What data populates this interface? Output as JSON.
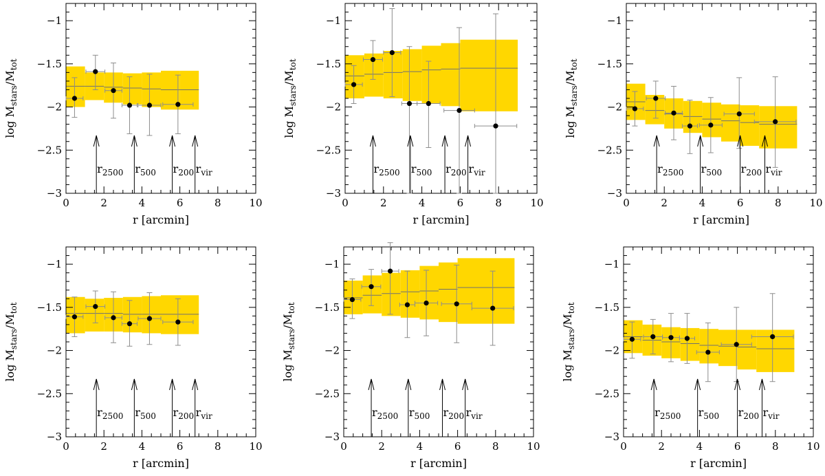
{
  "chart_data": [
    {
      "type": "scatter",
      "xlabel": "r [arcmin]",
      "ylabel_main": "log M",
      "ylabel_sub_num": "stars",
      "ylabel_sub_den": "tot",
      "xlim": [
        0,
        10
      ],
      "ylim": [
        -3,
        -0.8
      ],
      "xticks": [
        0,
        2,
        4,
        6,
        8,
        10
      ],
      "xtick_labels": [
        "0",
        "2",
        "4",
        "6",
        "8",
        "10"
      ],
      "yticks": [
        -3,
        -2.5,
        -2,
        -1.5,
        -1
      ],
      "ytick_labels": [
        "−3",
        "−2.5",
        "−2",
        "−1.5",
        "−1"
      ],
      "band": [
        {
          "x0": 0,
          "x1": 1,
          "lo": -2.0,
          "hi": -1.53
        },
        {
          "x0": 1,
          "x1": 2,
          "lo": -1.92,
          "hi": -1.6
        },
        {
          "x0": 2,
          "x1": 3,
          "lo": -1.95,
          "hi": -1.6
        },
        {
          "x0": 3,
          "x1": 4,
          "lo": -1.97,
          "hi": -1.61
        },
        {
          "x0": 4,
          "x1": 5,
          "lo": -2.0,
          "hi": -1.6
        },
        {
          "x0": 5,
          "x1": 6,
          "lo": -2.03,
          "hi": -1.58
        },
        {
          "x0": 6,
          "x1": 7,
          "lo": -2.03,
          "hi": -1.58
        }
      ],
      "line": [
        -1.76,
        -1.76,
        -1.77,
        -1.78,
        -1.79,
        -1.8,
        -1.8
      ],
      "points": [
        {
          "x": 0.45,
          "y": -1.9,
          "xerr": 0.45,
          "ylo": -2.12,
          "yhi": -1.66
        },
        {
          "x": 1.55,
          "y": -1.59,
          "xerr": 0.5,
          "ylo": -1.8,
          "yhi": -1.4
        },
        {
          "x": 2.5,
          "y": -1.81,
          "xerr": 0.45,
          "ylo": -2.13,
          "yhi": -1.49
        },
        {
          "x": 3.35,
          "y": -1.98,
          "xerr": 0.4,
          "ylo": -2.31,
          "yhi": -1.65
        },
        {
          "x": 4.4,
          "y": -1.98,
          "xerr": 0.6,
          "ylo": -2.33,
          "yhi": -1.62
        },
        {
          "x": 5.9,
          "y": -1.97,
          "xerr": 0.8,
          "ylo": -2.31,
          "yhi": -1.63
        }
      ],
      "arrows": [
        {
          "x": 1.6,
          "label": "r",
          "sub": "2500"
        },
        {
          "x": 3.6,
          "label": "r",
          "sub": "500"
        },
        {
          "x": 5.6,
          "label": "r",
          "sub": "200"
        },
        {
          "x": 6.8,
          "label": "r",
          "sub": "vir"
        }
      ]
    },
    {
      "type": "scatter",
      "xlabel": "r [arcmin]",
      "ylabel_main": "log M",
      "ylabel_sub_num": "stars",
      "ylabel_sub_den": "tot",
      "xlim": [
        0,
        10
      ],
      "ylim": [
        -3,
        -0.8
      ],
      "xticks": [
        0,
        2,
        4,
        6,
        8,
        10
      ],
      "xtick_labels": [
        "0",
        "2",
        "4",
        "6",
        "8",
        "10"
      ],
      "yticks": [
        -3,
        -2.5,
        -2,
        -1.5,
        -1
      ],
      "ytick_labels": [
        "−3",
        "−2.5",
        "−2",
        "−1.5",
        "−1"
      ],
      "band": [
        {
          "x0": 0,
          "x1": 1,
          "lo": -1.9,
          "hi": -1.4
        },
        {
          "x0": 1,
          "x1": 2,
          "lo": -1.88,
          "hi": -1.38
        },
        {
          "x0": 2,
          "x1": 3,
          "lo": -1.9,
          "hi": -1.35
        },
        {
          "x0": 3,
          "x1": 4,
          "lo": -1.93,
          "hi": -1.33
        },
        {
          "x0": 4,
          "x1": 5,
          "lo": -1.96,
          "hi": -1.29
        },
        {
          "x0": 5,
          "x1": 6,
          "lo": -1.99,
          "hi": -1.26
        },
        {
          "x0": 6,
          "x1": 9,
          "lo": -2.05,
          "hi": -1.22
        }
      ],
      "line": [
        -1.64,
        -1.62,
        -1.6,
        -1.59,
        -1.57,
        -1.56,
        -1.55
      ],
      "points": [
        {
          "x": 0.45,
          "y": -1.74,
          "xerr": 0.45,
          "ylo": -1.96,
          "yhi": -1.52
        },
        {
          "x": 1.45,
          "y": -1.45,
          "xerr": 0.5,
          "ylo": -1.68,
          "yhi": -1.23
        },
        {
          "x": 2.45,
          "y": -1.37,
          "xerr": 0.45,
          "ylo": -1.88,
          "yhi": -0.86
        },
        {
          "x": 3.35,
          "y": -1.96,
          "xerr": 0.4,
          "ylo": -3.0,
          "yhi": -1.3
        },
        {
          "x": 4.35,
          "y": -1.96,
          "xerr": 0.6,
          "ylo": -2.47,
          "yhi": -1.47
        },
        {
          "x": 5.95,
          "y": -2.04,
          "xerr": 0.8,
          "ylo": -3.0,
          "yhi": -1.08
        },
        {
          "x": 7.85,
          "y": -2.22,
          "xerr": 1.1,
          "ylo": -3.0,
          "yhi": -0.92
        }
      ],
      "arrows": [
        {
          "x": 1.45,
          "label": "r",
          "sub": "2500"
        },
        {
          "x": 3.4,
          "label": "r",
          "sub": "500"
        },
        {
          "x": 5.2,
          "label": "r",
          "sub": "200"
        },
        {
          "x": 6.4,
          "label": "r",
          "sub": "vir"
        }
      ]
    },
    {
      "type": "scatter",
      "xlabel": "r [arcmin]",
      "ylabel_main": "log M",
      "ylabel_sub_num": "stars",
      "ylabel_sub_den": "tot",
      "xlim": [
        0,
        10
      ],
      "ylim": [
        -3,
        -0.8
      ],
      "xticks": [
        0,
        2,
        4,
        6,
        8,
        10
      ],
      "xtick_labels": [
        "0",
        "2",
        "4",
        "6",
        "8",
        "10"
      ],
      "yticks": [
        -3,
        -2.5,
        -2,
        -1.5,
        -1
      ],
      "ytick_labels": [
        "−3",
        "−2.5",
        "−2",
        "−1.5",
        "−1"
      ],
      "band": [
        {
          "x0": 0,
          "x1": 1,
          "lo": -2.15,
          "hi": -1.73
        },
        {
          "x0": 1,
          "x1": 2,
          "lo": -2.2,
          "hi": -1.86
        },
        {
          "x0": 2,
          "x1": 3,
          "lo": -2.25,
          "hi": -1.9
        },
        {
          "x0": 3,
          "x1": 4,
          "lo": -2.3,
          "hi": -1.93
        },
        {
          "x0": 4,
          "x1": 5,
          "lo": -2.35,
          "hi": -1.95
        },
        {
          "x0": 5,
          "x1": 6,
          "lo": -2.4,
          "hi": -1.97
        },
        {
          "x0": 6,
          "x1": 7,
          "lo": -2.45,
          "hi": -1.98
        },
        {
          "x0": 7,
          "x1": 9,
          "lo": -2.48,
          "hi": -1.99
        }
      ],
      "line": [
        -1.94,
        -2.04,
        -2.08,
        -2.11,
        -2.14,
        -2.16,
        -2.18,
        -2.2
      ],
      "points": [
        {
          "x": 0.45,
          "y": -2.02,
          "xerr": 0.45,
          "ylo": -2.22,
          "yhi": -1.82
        },
        {
          "x": 1.55,
          "y": -1.9,
          "xerr": 0.5,
          "ylo": -2.13,
          "yhi": -1.7
        },
        {
          "x": 2.5,
          "y": -2.07,
          "xerr": 0.45,
          "ylo": -2.38,
          "yhi": -1.76
        },
        {
          "x": 3.35,
          "y": -2.22,
          "xerr": 0.4,
          "ylo": -2.54,
          "yhi": -1.92
        },
        {
          "x": 4.45,
          "y": -2.21,
          "xerr": 0.6,
          "ylo": -2.53,
          "yhi": -1.89
        },
        {
          "x": 5.95,
          "y": -2.08,
          "xerr": 0.8,
          "ylo": -2.48,
          "yhi": -1.66
        },
        {
          "x": 7.85,
          "y": -2.17,
          "xerr": 1.1,
          "ylo": -2.7,
          "yhi": -1.65
        }
      ],
      "arrows": [
        {
          "x": 1.6,
          "label": "r",
          "sub": "2500"
        },
        {
          "x": 3.9,
          "label": "r",
          "sub": "500"
        },
        {
          "x": 6.0,
          "label": "r",
          "sub": "200"
        },
        {
          "x": 7.3,
          "label": "r",
          "sub": "vir"
        }
      ]
    },
    {
      "type": "scatter",
      "xlabel": "r [arcmin]",
      "ylabel_main": "log M",
      "ylabel_sub_num": "stars",
      "ylabel_sub_den": "tot",
      "xlim": [
        0,
        10
      ],
      "ylim": [
        -3,
        -0.8
      ],
      "xticks": [
        0,
        2,
        4,
        6,
        8,
        10
      ],
      "xtick_labels": [
        "0",
        "2",
        "4",
        "6",
        "8",
        "10"
      ],
      "yticks": [
        -3,
        -2.5,
        -2,
        -1.5,
        -1
      ],
      "ytick_labels": [
        "−3",
        "−2.5",
        "−2",
        "−1.5",
        "−1"
      ],
      "band": [
        {
          "x0": 0,
          "x1": 1,
          "lo": -1.8,
          "hi": -1.38
        },
        {
          "x0": 1,
          "x1": 2,
          "lo": -1.78,
          "hi": -1.4
        },
        {
          "x0": 2,
          "x1": 3,
          "lo": -1.78,
          "hi": -1.39
        },
        {
          "x0": 3,
          "x1": 4,
          "lo": -1.79,
          "hi": -1.38
        },
        {
          "x0": 4,
          "x1": 5,
          "lo": -1.8,
          "hi": -1.37
        },
        {
          "x0": 5,
          "x1": 7,
          "lo": -1.81,
          "hi": -1.36
        }
      ],
      "line": [
        -1.57,
        -1.57,
        -1.57,
        -1.58,
        -1.58,
        -1.58
      ],
      "points": [
        {
          "x": 0.45,
          "y": -1.61,
          "xerr": 0.45,
          "ylo": -1.84,
          "yhi": -1.38
        },
        {
          "x": 1.55,
          "y": -1.49,
          "xerr": 0.5,
          "ylo": -1.68,
          "yhi": -1.31
        },
        {
          "x": 2.5,
          "y": -1.62,
          "xerr": 0.45,
          "ylo": -1.91,
          "yhi": -1.32
        },
        {
          "x": 3.35,
          "y": -1.69,
          "xerr": 0.4,
          "ylo": -1.95,
          "yhi": -1.42
        },
        {
          "x": 4.4,
          "y": -1.63,
          "xerr": 0.6,
          "ylo": -1.93,
          "yhi": -1.33
        },
        {
          "x": 5.9,
          "y": -1.67,
          "xerr": 0.8,
          "ylo": -1.94,
          "yhi": -1.4
        }
      ],
      "arrows": [
        {
          "x": 1.6,
          "label": "r",
          "sub": "2500"
        },
        {
          "x": 3.6,
          "label": "r",
          "sub": "500"
        },
        {
          "x": 5.6,
          "label": "r",
          "sub": "200"
        },
        {
          "x": 6.8,
          "label": "r",
          "sub": "vir"
        }
      ]
    },
    {
      "type": "scatter",
      "xlabel": "r [arcmin]",
      "ylabel_main": "log M",
      "ylabel_sub_num": "stars",
      "ylabel_sub_den": "tot",
      "xlim": [
        0,
        10
      ],
      "ylim": [
        -3,
        -0.8
      ],
      "xticks": [
        0,
        2,
        4,
        6,
        8,
        10
      ],
      "xtick_labels": [
        "0",
        "2",
        "4",
        "6",
        "8",
        "10"
      ],
      "yticks": [
        -3,
        -2.5,
        -2,
        -1.5,
        -1
      ],
      "ytick_labels": [
        "−3",
        "−2.5",
        "−2",
        "−1.5",
        "−1"
      ],
      "band": [
        {
          "x0": 0,
          "x1": 1,
          "lo": -1.58,
          "hi": -1.19
        },
        {
          "x0": 1,
          "x1": 2,
          "lo": -1.57,
          "hi": -1.13
        },
        {
          "x0": 2,
          "x1": 3,
          "lo": -1.6,
          "hi": -1.1
        },
        {
          "x0": 3,
          "x1": 4,
          "lo": -1.62,
          "hi": -1.07
        },
        {
          "x0": 4,
          "x1": 5,
          "lo": -1.64,
          "hi": -1.02
        },
        {
          "x0": 5,
          "x1": 6,
          "lo": -1.67,
          "hi": -0.98
        },
        {
          "x0": 6,
          "x1": 9,
          "lo": -1.69,
          "hi": -0.93
        }
      ],
      "line": [
        -1.39,
        -1.36,
        -1.34,
        -1.32,
        -1.31,
        -1.29,
        -1.27
      ],
      "points": [
        {
          "x": 0.45,
          "y": -1.41,
          "xerr": 0.45,
          "ylo": -1.63,
          "yhi": -1.17
        },
        {
          "x": 1.45,
          "y": -1.26,
          "xerr": 0.5,
          "ylo": -1.48,
          "yhi": -1.06
        },
        {
          "x": 2.45,
          "y": -1.08,
          "xerr": 0.45,
          "ylo": -1.58,
          "yhi": -0.75
        },
        {
          "x": 3.35,
          "y": -1.47,
          "xerr": 0.4,
          "ylo": -1.85,
          "yhi": -1.08
        },
        {
          "x": 4.35,
          "y": -1.45,
          "xerr": 0.6,
          "ylo": -1.83,
          "yhi": -1.07
        },
        {
          "x": 5.95,
          "y": -1.46,
          "xerr": 0.8,
          "ylo": -1.91,
          "yhi": -1.01
        },
        {
          "x": 7.85,
          "y": -1.51,
          "xerr": 1.1,
          "ylo": -1.94,
          "yhi": -1.08
        }
      ],
      "arrows": [
        {
          "x": 1.45,
          "label": "r",
          "sub": "2500"
        },
        {
          "x": 3.4,
          "label": "r",
          "sub": "500"
        },
        {
          "x": 5.2,
          "label": "r",
          "sub": "200"
        },
        {
          "x": 6.4,
          "label": "r",
          "sub": "vir"
        }
      ]
    },
    {
      "type": "scatter",
      "xlabel": "r [arcmin]",
      "ylabel_main": "log M",
      "ylabel_sub_num": "stars",
      "ylabel_sub_den": "tot",
      "xlim": [
        0,
        10
      ],
      "ylim": [
        -3,
        -0.8
      ],
      "xticks": [
        0,
        2,
        4,
        6,
        8,
        10
      ],
      "xtick_labels": [
        "0",
        "2",
        "4",
        "6",
        "8",
        "10"
      ],
      "yticks": [
        -3,
        -2.5,
        -2,
        -1.5,
        -1
      ],
      "ytick_labels": [
        "−3",
        "−2.5",
        "−2",
        "−1.5",
        "−1"
      ],
      "band": [
        {
          "x0": 0,
          "x1": 1,
          "lo": -2.03,
          "hi": -1.65
        },
        {
          "x0": 1,
          "x1": 2,
          "lo": -2.06,
          "hi": -1.7
        },
        {
          "x0": 2,
          "x1": 3,
          "lo": -2.09,
          "hi": -1.73
        },
        {
          "x0": 3,
          "x1": 4,
          "lo": -2.12,
          "hi": -1.74
        },
        {
          "x0": 4,
          "x1": 5,
          "lo": -2.15,
          "hi": -1.75
        },
        {
          "x0": 5,
          "x1": 6,
          "lo": -2.18,
          "hi": -1.76
        },
        {
          "x0": 6,
          "x1": 7,
          "lo": -2.22,
          "hi": -1.76
        },
        {
          "x0": 7,
          "x1": 9,
          "lo": -2.25,
          "hi": -1.76
        }
      ],
      "line": [
        -1.84,
        -1.88,
        -1.9,
        -1.92,
        -1.94,
        -1.95,
        -1.96,
        -1.98
      ],
      "points": [
        {
          "x": 0.45,
          "y": -1.87,
          "xerr": 0.45,
          "ylo": -2.09,
          "yhi": -1.67
        },
        {
          "x": 1.55,
          "y": -1.84,
          "xerr": 0.5,
          "ylo": -2.04,
          "yhi": -1.64
        },
        {
          "x": 2.5,
          "y": -1.85,
          "xerr": 0.45,
          "ylo": -2.13,
          "yhi": -1.57
        },
        {
          "x": 3.35,
          "y": -1.86,
          "xerr": 0.4,
          "ylo": -2.15,
          "yhi": -1.57
        },
        {
          "x": 4.45,
          "y": -2.02,
          "xerr": 0.6,
          "ylo": -2.36,
          "yhi": -1.68
        },
        {
          "x": 5.95,
          "y": -1.93,
          "xerr": 0.8,
          "ylo": -2.36,
          "yhi": -1.5
        },
        {
          "x": 7.85,
          "y": -1.84,
          "xerr": 1.1,
          "ylo": -2.36,
          "yhi": -1.34
        }
      ],
      "arrows": [
        {
          "x": 1.6,
          "label": "r",
          "sub": "2500"
        },
        {
          "x": 3.9,
          "label": "r",
          "sub": "500"
        },
        {
          "x": 6.0,
          "label": "r",
          "sub": "200"
        },
        {
          "x": 7.3,
          "label": "r",
          "sub": "vir"
        }
      ]
    }
  ]
}
